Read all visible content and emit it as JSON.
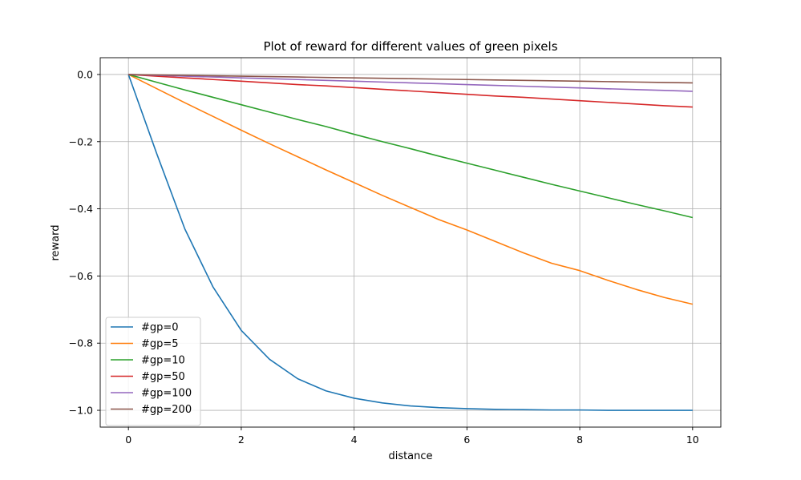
{
  "chart_data": {
    "type": "line",
    "title": "Plot of reward for different values of green pixels",
    "xlabel": "distance",
    "ylabel": "reward",
    "xlim": [
      -0.5,
      10.5
    ],
    "ylim": [
      -1.05,
      0.05
    ],
    "x_ticks": [
      0,
      2,
      4,
      6,
      8,
      10
    ],
    "x_tick_labels": [
      "0",
      "2",
      "4",
      "6",
      "8",
      "10"
    ],
    "y_ticks": [
      0.0,
      -0.2,
      -0.4,
      -0.6,
      -0.8,
      -1.0
    ],
    "y_tick_labels": [
      "0.0",
      "−0.2",
      "−0.4",
      "−0.6",
      "−0.8",
      "−1.0"
    ],
    "grid": true,
    "legend_placement": "lower-left",
    "x": [
      0,
      0.5,
      1,
      1.5,
      2,
      2.5,
      3,
      3.5,
      4,
      4.5,
      5,
      5.5,
      6,
      6.5,
      7,
      7.5,
      8,
      8.5,
      9,
      9.5,
      10
    ],
    "series": [
      {
        "name": "#gp=0",
        "color": "#1f77b4",
        "values": [
          0.0,
          -0.235,
          -0.46,
          -0.633,
          -0.762,
          -0.848,
          -0.906,
          -0.942,
          -0.964,
          -0.978,
          -0.987,
          -0.992,
          -0.995,
          -0.997,
          -0.998,
          -0.999,
          -0.999,
          -1.0,
          -1.0,
          -1.0,
          -1.0
        ]
      },
      {
        "name": "#gp=5",
        "color": "#ff7f0e",
        "values": [
          0.0,
          -0.042,
          -0.084,
          -0.125,
          -0.166,
          -0.206,
          -0.245,
          -0.284,
          -0.322,
          -0.36,
          -0.396,
          -0.432,
          -0.463,
          -0.497,
          -0.531,
          -0.562,
          -0.584,
          -0.613,
          -0.64,
          -0.664,
          -0.684
        ]
      },
      {
        "name": "#gp=10",
        "color": "#2ca02c",
        "values": [
          0.0,
          -0.023,
          -0.046,
          -0.068,
          -0.09,
          -0.112,
          -0.134,
          -0.155,
          -0.178,
          -0.2,
          -0.221,
          -0.243,
          -0.264,
          -0.285,
          -0.306,
          -0.327,
          -0.347,
          -0.367,
          -0.387,
          -0.406,
          -0.426
        ]
      },
      {
        "name": "#gp=50",
        "color": "#d62728",
        "values": [
          0.0,
          -0.005,
          -0.01,
          -0.015,
          -0.02,
          -0.025,
          -0.03,
          -0.034,
          -0.039,
          -0.044,
          -0.049,
          -0.054,
          -0.059,
          -0.064,
          -0.068,
          -0.073,
          -0.078,
          -0.083,
          -0.088,
          -0.093,
          -0.097
        ]
      },
      {
        "name": "#gp=100",
        "color": "#9467bd",
        "values": [
          0.0,
          -0.0025,
          -0.005,
          -0.0075,
          -0.01,
          -0.0125,
          -0.015,
          -0.0175,
          -0.02,
          -0.0225,
          -0.025,
          -0.0275,
          -0.03,
          -0.0325,
          -0.035,
          -0.0375,
          -0.04,
          -0.0425,
          -0.045,
          -0.0475,
          -0.05
        ]
      },
      {
        "name": "#gp=200",
        "color": "#8c564b",
        "values": [
          0.0,
          -0.0013,
          -0.0025,
          -0.0038,
          -0.005,
          -0.0063,
          -0.0075,
          -0.0088,
          -0.01,
          -0.0113,
          -0.0125,
          -0.0138,
          -0.015,
          -0.0163,
          -0.0175,
          -0.0188,
          -0.02,
          -0.0213,
          -0.0225,
          -0.0238,
          -0.025
        ]
      }
    ]
  }
}
